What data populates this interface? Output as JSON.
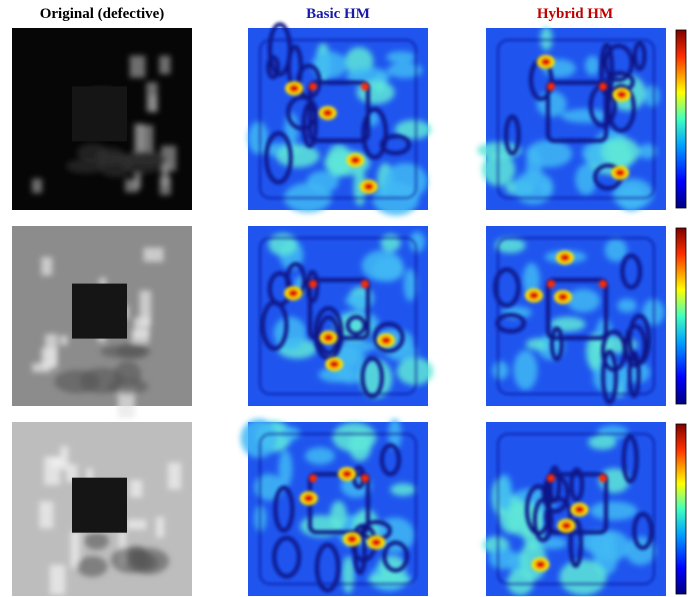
{
  "headers": [
    "Original (defective)",
    "Basic HM",
    "Hybrid HM"
  ]
}
